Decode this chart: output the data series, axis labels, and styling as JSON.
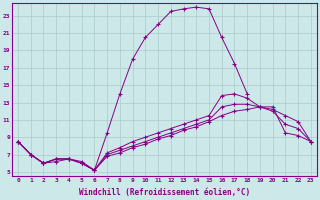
{
  "background_color": "#cce8e8",
  "grid_color": "#aacccc",
  "line_color": "#880088",
  "xlabel": "Windchill (Refroidissement éolien,°C)",
  "xlim": [
    -0.5,
    23.5
  ],
  "ylim": [
    4.5,
    24.5
  ],
  "yticks": [
    5,
    7,
    9,
    11,
    13,
    15,
    17,
    19,
    21,
    23
  ],
  "xticks": [
    0,
    1,
    2,
    3,
    4,
    5,
    6,
    7,
    8,
    9,
    10,
    11,
    12,
    13,
    14,
    15,
    16,
    17,
    18,
    19,
    20,
    21,
    22,
    23
  ],
  "line1_x": [
    0,
    1,
    2,
    3,
    4,
    5,
    6,
    7,
    8,
    9,
    10,
    11,
    12,
    13,
    14,
    15,
    16,
    17,
    18
  ],
  "line1_y": [
    8.5,
    7.0,
    6.0,
    6.5,
    6.5,
    6.0,
    5.2,
    9.5,
    14.0,
    18.0,
    20.5,
    22.0,
    23.5,
    23.8,
    24.0,
    23.8,
    20.5,
    17.5,
    14.0
  ],
  "line2_x": [
    0,
    1,
    2,
    3,
    4,
    5,
    6,
    7,
    8,
    9,
    10,
    11,
    12,
    13,
    14,
    15,
    16,
    17,
    18,
    19,
    20,
    21,
    22,
    23
  ],
  "line2_y": [
    8.5,
    7.0,
    6.0,
    6.5,
    6.5,
    6.0,
    5.2,
    7.2,
    7.8,
    8.5,
    9.0,
    9.5,
    10.0,
    10.5,
    11.0,
    11.5,
    13.8,
    14.0,
    13.5,
    12.5,
    12.2,
    11.5,
    10.8,
    8.5
  ],
  "line3_x": [
    0,
    1,
    2,
    3,
    4,
    5,
    6,
    7,
    8,
    9,
    10,
    11,
    12,
    13,
    14,
    15,
    16,
    17,
    18,
    19,
    20,
    21,
    22,
    23
  ],
  "line3_y": [
    8.5,
    7.0,
    6.0,
    6.5,
    6.5,
    6.0,
    5.2,
    7.0,
    7.5,
    8.0,
    8.5,
    9.0,
    9.5,
    10.0,
    10.5,
    11.0,
    12.5,
    12.8,
    12.8,
    12.5,
    12.0,
    10.5,
    10.0,
    8.5
  ],
  "line4_x": [
    0,
    1,
    2,
    3,
    4,
    5,
    6,
    7,
    8,
    9,
    10,
    11,
    12,
    13,
    14,
    15,
    16,
    17,
    18,
    19,
    20,
    21,
    22,
    23
  ],
  "line4_y": [
    8.5,
    7.0,
    6.0,
    6.2,
    6.5,
    6.2,
    5.2,
    6.8,
    7.2,
    7.8,
    8.2,
    8.8,
    9.2,
    9.8,
    10.2,
    10.8,
    11.5,
    12.0,
    12.2,
    12.5,
    12.5,
    9.5,
    9.2,
    8.5
  ]
}
